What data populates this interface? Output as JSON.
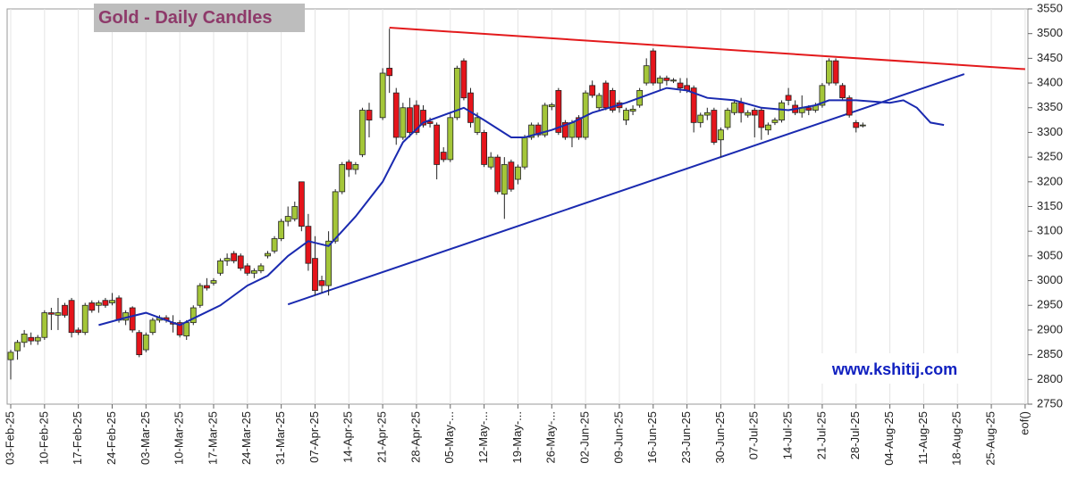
{
  "chart_data": {
    "type": "candlestick",
    "title": "Gold - Daily Candles",
    "watermark": "www.kshitij.com",
    "ylim": [
      2750,
      3550
    ],
    "yticks": [
      2750,
      2800,
      2850,
      2900,
      2950,
      3000,
      3050,
      3100,
      3150,
      3200,
      3250,
      3300,
      3350,
      3400,
      3450,
      3500,
      3550
    ],
    "xlim": [
      "03-Feb-25",
      "01-Sep-25"
    ],
    "xticks": [
      "03-Feb-25",
      "10-Feb-25",
      "17-Feb-25",
      "24-Feb-25",
      "03-Mar-25",
      "10-Mar-25",
      "17-Mar-25",
      "24-Mar-25",
      "31-Mar-25",
      "07-Apr-25",
      "14-Apr-25",
      "21-Apr-25",
      "28-Apr-25",
      {
        "value": "05-May-25",
        "label": "05-May-..."
      },
      {
        "value": "12-May-25",
        "label": "12-May-..."
      },
      {
        "value": "19-May-25",
        "label": "19-May-..."
      },
      {
        "value": "26-May-25",
        "label": "26-May-..."
      },
      "02-Jun-25",
      "09-Jun-25",
      "16-Jun-25",
      "23-Jun-25",
      "30-Jun-25",
      "07-Jul-25",
      "14-Jul-25",
      "21-Jul-25",
      "28-Jul-25",
      "04-Aug-25",
      "11-Aug-25",
      "18-Aug-25",
      "25-Aug-25",
      {
        "value": "01-Sep-25",
        "label": "eof()"
      }
    ],
    "grid": true,
    "up_color": "#a4c639",
    "down_color": "#e5141b",
    "x": [
      "03-Feb-25",
      "04-Feb-25",
      "05-Feb-25",
      "06-Feb-25",
      "07-Feb-25",
      "10-Feb-25",
      "11-Feb-25",
      "12-Feb-25",
      "13-Feb-25",
      "14-Feb-25",
      "17-Feb-25",
      "18-Feb-25",
      "19-Feb-25",
      "20-Feb-25",
      "21-Feb-25",
      "24-Feb-25",
      "25-Feb-25",
      "26-Feb-25",
      "27-Feb-25",
      "28-Feb-25",
      "03-Mar-25",
      "04-Mar-25",
      "05-Mar-25",
      "06-Mar-25",
      "07-Mar-25",
      "10-Mar-25",
      "11-Mar-25",
      "12-Mar-25",
      "13-Mar-25",
      "14-Mar-25",
      "17-Mar-25",
      "18-Mar-25",
      "19-Mar-25",
      "20-Mar-25",
      "21-Mar-25",
      "24-Mar-25",
      "25-Mar-25",
      "26-Mar-25",
      "27-Mar-25",
      "28-Mar-25",
      "31-Mar-25",
      "01-Apr-25",
      "02-Apr-25",
      "03-Apr-25",
      "04-Apr-25",
      "07-Apr-25",
      "08-Apr-25",
      "09-Apr-25",
      "10-Apr-25",
      "11-Apr-25",
      "14-Apr-25",
      "15-Apr-25",
      "16-Apr-25",
      "17-Apr-25",
      "21-Apr-25",
      "22-Apr-25",
      "23-Apr-25",
      "24-Apr-25",
      "25-Apr-25",
      "28-Apr-25",
      "29-Apr-25",
      "30-Apr-25",
      "01-May-25",
      "02-May-25",
      "05-May-25",
      "06-May-25",
      "07-May-25",
      "08-May-25",
      "09-May-25",
      "12-May-25",
      "13-May-25",
      "14-May-25",
      "15-May-25",
      "16-May-25",
      "19-May-25",
      "20-May-25",
      "21-May-25",
      "22-May-25",
      "23-May-25",
      "26-May-25",
      "27-May-25",
      "28-May-25",
      "29-May-25",
      "30-May-25",
      "02-Jun-25",
      "03-Jun-25",
      "04-Jun-25",
      "05-Jun-25",
      "06-Jun-25",
      "09-Jun-25",
      "10-Jun-25",
      "11-Jun-25",
      "12-Jun-25",
      "13-Jun-25",
      "16-Jun-25",
      "17-Jun-25",
      "18-Jun-25",
      "19-Jun-25",
      "20-Jun-25",
      "23-Jun-25",
      "24-Jun-25",
      "25-Jun-25",
      "26-Jun-25",
      "27-Jun-25",
      "30-Jun-25",
      "01-Jul-25",
      "02-Jul-25",
      "03-Jul-25",
      "04-Jul-25",
      "07-Jul-25",
      "08-Jul-25",
      "09-Jul-25",
      "10-Jul-25",
      "11-Jul-25",
      "14-Jul-25",
      "15-Jul-25",
      "16-Jul-25",
      "17-Jul-25",
      "18-Jul-25",
      "21-Jul-25",
      "22-Jul-25",
      "23-Jul-25",
      "24-Jul-25",
      "25-Jul-25",
      "28-Jul-25",
      "29-Jul-25"
    ],
    "open": [
      2840,
      2858,
      2875,
      2885,
      2878,
      2885,
      2935,
      2930,
      2950,
      2960,
      2900,
      2895,
      2955,
      2950,
      2960,
      2955,
      2965,
      2920,
      2945,
      2895,
      2860,
      2895,
      2920,
      2925,
      2915,
      2915,
      2888,
      2915,
      2950,
      2990,
      2995,
      3015,
      3040,
      3055,
      3050,
      3030,
      3015,
      3020,
      3050,
      3060,
      3085,
      3120,
      3125,
      3200,
      3110,
      3045,
      3000,
      2990,
      3080,
      3180,
      3240,
      3225,
      3255,
      3345,
      3330,
      3430,
      3380,
      3290,
      3350,
      3355,
      3345,
      3322,
      3315,
      3260,
      3245,
      3330,
      3445,
      3380,
      3300,
      3300,
      3230,
      3250,
      3175,
      3240,
      3205,
      3230,
      3290,
      3315,
      3295,
      3352,
      3385,
      3320,
      3290,
      3330,
      3290,
      3395,
      3350,
      3400,
      3385,
      3360,
      3325,
      3343,
      3355,
      3400,
      3465,
      3400,
      3410,
      3404,
      3400,
      3395,
      3390,
      3320,
      3335,
      3345,
      3285,
      3310,
      3340,
      3360,
      3335,
      3345,
      3345,
      3305,
      3320,
      3325,
      3375,
      3355,
      3340,
      3350,
      3345,
      3355,
      3400,
      3445,
      3395,
      3370,
      3320,
      3315
    ],
    "high": [
      2860,
      2880,
      2900,
      2895,
      2890,
      2940,
      2945,
      2965,
      2955,
      2965,
      2905,
      2955,
      2960,
      2960,
      2965,
      2975,
      2970,
      2940,
      2948,
      2900,
      2895,
      2925,
      2930,
      2930,
      2930,
      2920,
      2920,
      2950,
      2995,
      3005,
      3005,
      3045,
      3055,
      3060,
      3055,
      3035,
      3025,
      3035,
      3060,
      3090,
      3125,
      3150,
      3160,
      3200,
      3135,
      3090,
      3010,
      3100,
      3185,
      3240,
      3245,
      3240,
      3350,
      3360,
      3430,
      3510,
      3390,
      3360,
      3370,
      3365,
      3355,
      3330,
      3320,
      3270,
      3340,
      3435,
      3450,
      3390,
      3340,
      3305,
      3260,
      3255,
      3250,
      3245,
      3235,
      3295,
      3320,
      3320,
      3360,
      3360,
      3390,
      3325,
      3325,
      3335,
      3385,
      3405,
      3380,
      3405,
      3390,
      3365,
      3350,
      3355,
      3390,
      3450,
      3470,
      3415,
      3415,
      3410,
      3410,
      3410,
      3395,
      3340,
      3350,
      3350,
      3310,
      3350,
      3365,
      3370,
      3345,
      3350,
      3350,
      3320,
      3330,
      3365,
      3390,
      3365,
      3375,
      3355,
      3360,
      3400,
      3450,
      3450,
      3400,
      3375,
      3325,
      3320
    ],
    "low": [
      2800,
      2840,
      2865,
      2870,
      2870,
      2880,
      2900,
      2900,
      2925,
      2885,
      2890,
      2890,
      2935,
      2935,
      2945,
      2950,
      2915,
      2910,
      2895,
      2845,
      2855,
      2890,
      2915,
      2915,
      2895,
      2885,
      2880,
      2910,
      2945,
      2980,
      2990,
      3010,
      3030,
      3035,
      3020,
      3010,
      3005,
      3015,
      3045,
      3055,
      3080,
      3110,
      3120,
      3100,
      3020,
      2970,
      2975,
      2970,
      3075,
      3175,
      3210,
      3215,
      3250,
      3290,
      3325,
      3380,
      3275,
      3285,
      3290,
      3295,
      3310,
      3310,
      3205,
      3240,
      3240,
      3325,
      3365,
      3310,
      3295,
      3230,
      3225,
      3175,
      3125,
      3180,
      3195,
      3225,
      3285,
      3290,
      3290,
      3345,
      3295,
      3285,
      3270,
      3285,
      3285,
      3370,
      3345,
      3345,
      3340,
      3340,
      3315,
      3335,
      3350,
      3395,
      3395,
      3385,
      3395,
      3400,
      3380,
      3380,
      3300,
      3310,
      3325,
      3275,
      3250,
      3305,
      3335,
      3320,
      3330,
      3290,
      3285,
      3295,
      3315,
      3320,
      3355,
      3335,
      3330,
      3335,
      3340,
      3350,
      3395,
      3395,
      3365,
      3330,
      3300,
      3310
    ],
    "close": [
      2855,
      2875,
      2892,
      2878,
      2885,
      2935,
      2932,
      2935,
      2930,
      2895,
      2895,
      2950,
      2940,
      2955,
      2950,
      2960,
      2920,
      2935,
      2900,
      2850,
      2890,
      2920,
      2925,
      2920,
      2912,
      2890,
      2915,
      2945,
      2990,
      2985,
      3000,
      3040,
      3045,
      3040,
      3025,
      3015,
      3020,
      3030,
      3055,
      3085,
      3120,
      3130,
      3150,
      3110,
      3035,
      2980,
      2990,
      3080,
      3180,
      3235,
      3225,
      3235,
      3345,
      3325,
      3420,
      3415,
      3290,
      3350,
      3300,
      3300,
      3315,
      3318,
      3235,
      3245,
      3330,
      3430,
      3370,
      3320,
      3330,
      3235,
      3250,
      3180,
      3235,
      3185,
      3230,
      3290,
      3315,
      3295,
      3355,
      3356,
      3300,
      3290,
      3320,
      3290,
      3380,
      3375,
      3375,
      3350,
      3345,
      3350,
      3345,
      3347,
      3385,
      3435,
      3400,
      3410,
      3405,
      3406,
      3390,
      3385,
      3320,
      3335,
      3340,
      3280,
      3305,
      3345,
      3360,
      3340,
      3340,
      3335,
      3310,
      3315,
      3325,
      3360,
      3365,
      3340,
      3350,
      3345,
      3355,
      3395,
      3445,
      3400,
      3370,
      3335,
      3310,
      3315
    ],
    "ma": {
      "color": "#1a2ab0",
      "x": [
        "20-Feb-25",
        "26-Feb-25",
        "03-Mar-25",
        "10-Mar-25",
        "13-Mar-25",
        "18-Mar-25",
        "24-Mar-25",
        "27-Mar-25",
        "01-Apr-25",
        "04-Apr-25",
        "09-Apr-25",
        "15-Apr-25",
        "21-Apr-25",
        "24-Apr-25",
        "29-Apr-25",
        "05-May-25",
        "07-May-25",
        "12-May-25",
        "16-May-25",
        "20-May-25",
        "26-May-25",
        "29-May-25",
        "03-Jun-25",
        "10-Jun-25",
        "16-Jun-25",
        "18-Jun-25",
        "23-Jun-25",
        "26-Jun-25",
        "02-Jul-25",
        "08-Jul-25",
        "14-Jul-25",
        "18-Jul-25",
        "22-Jul-25",
        "28-Jul-25",
        "04-Aug-25",
        "06-Aug-25",
        "08-Aug-25",
        "12-Aug-25",
        "14-Aug-25"
      ],
      "values": [
        2910,
        2925,
        2935,
        2910,
        2930,
        2950,
        2990,
        3010,
        3050,
        3080,
        3070,
        3130,
        3200,
        3280,
        3320,
        3340,
        3350,
        3325,
        3290,
        3290,
        3305,
        3320,
        3340,
        3360,
        3380,
        3390,
        3385,
        3370,
        3365,
        3350,
        3345,
        3355,
        3365,
        3365,
        3360,
        3365,
        3350,
        3320,
        3315
      ]
    },
    "trendlines": [
      {
        "color": "#e31a1c",
        "points": [
          {
            "x": "22-Apr-25",
            "y": 3512
          },
          {
            "x": "01-Sep-25",
            "y": 3428
          }
        ]
      },
      {
        "color": "#1a2ab0",
        "points": [
          {
            "x": "01-Apr-25",
            "y": 2952
          },
          {
            "x": "19-Aug-25",
            "y": 3418
          }
        ]
      }
    ]
  }
}
